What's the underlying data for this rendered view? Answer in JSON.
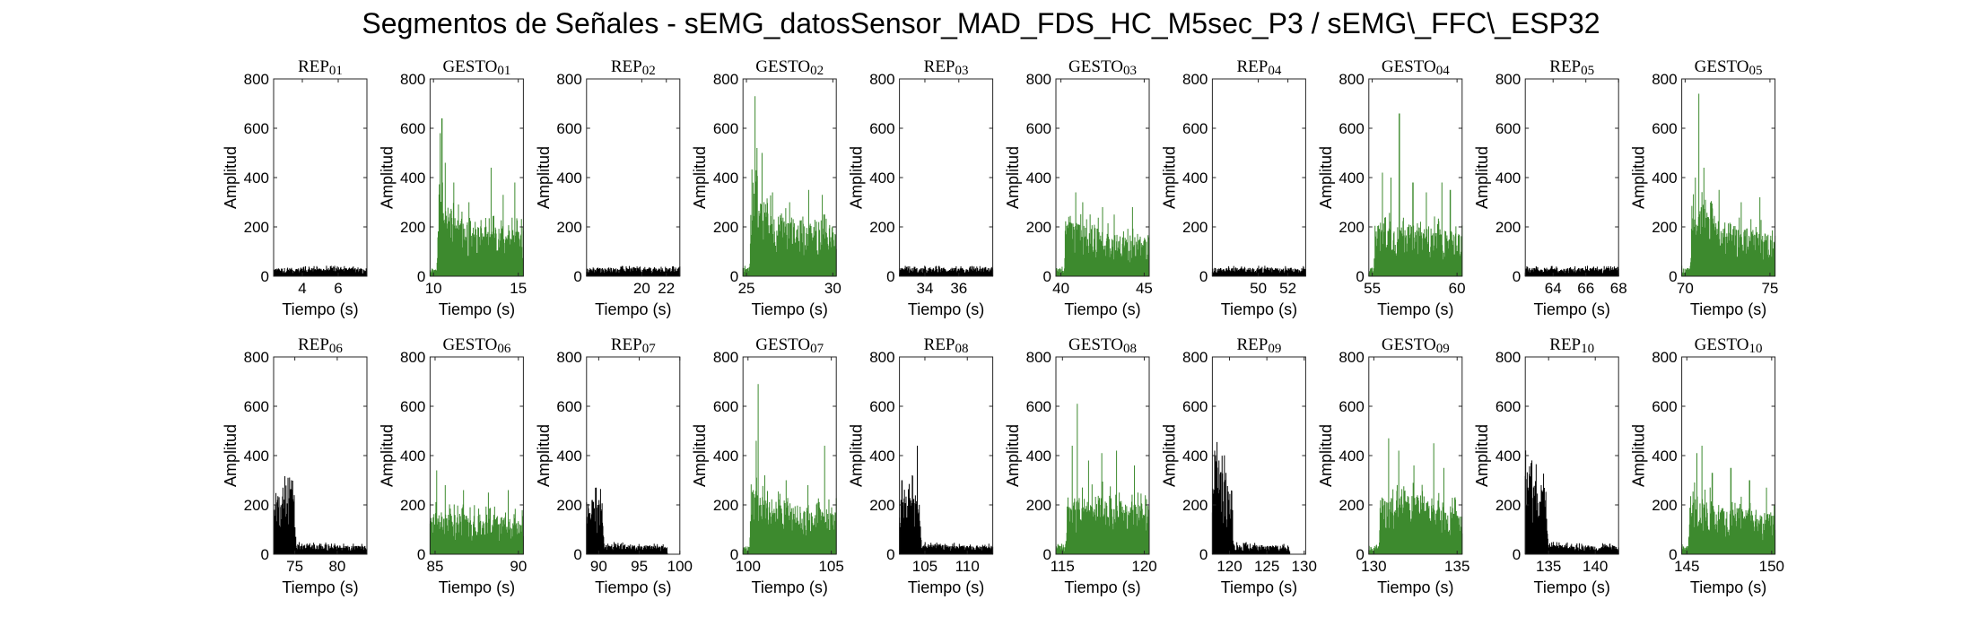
{
  "title": "Segmentos de Señales - sEMG_datosSensor_MAD_FDS_HC_M5sec_P3 / sEMG\\_FFC\\_ESP32",
  "colors": {
    "rep": "#000000",
    "gesto": "#3d8a2e",
    "axis": "#262626"
  },
  "chart_data": [
    {
      "type": "area",
      "title": "REP_01",
      "kind": "rep",
      "xlabel": "Tiempo (s)",
      "ylabel": "Amplitud",
      "xlim": [
        2.4,
        7.6
      ],
      "ylim": [
        0,
        800
      ],
      "xticks": [
        4,
        6
      ],
      "yticks": [
        0,
        200,
        400,
        600,
        800
      ],
      "profile": {
        "base": [
          [
            2.4,
            25
          ],
          [
            7.6,
            25
          ]
        ],
        "peaks": []
      }
    },
    {
      "type": "area",
      "title": "GESTO_01",
      "kind": "gesto",
      "xlabel": "Tiempo (s)",
      "ylabel": "Amplitud",
      "xlim": [
        9.8,
        15.3
      ],
      "ylim": [
        0,
        800
      ],
      "xticks": [
        10,
        15
      ],
      "yticks": [
        0,
        200,
        400,
        600,
        800
      ],
      "profile": {
        "base": [
          [
            9.8,
            20
          ],
          [
            10.2,
            20
          ],
          [
            10.3,
            260
          ],
          [
            10.8,
            190
          ],
          [
            12,
            160
          ],
          [
            15.3,
            140
          ]
        ],
        "peaks": [
          [
            10.4,
            580
          ],
          [
            10.5,
            640
          ],
          [
            10.7,
            460
          ],
          [
            11.2,
            380
          ],
          [
            12.1,
            300
          ],
          [
            13.4,
            440
          ],
          [
            14.1,
            330
          ],
          [
            14.8,
            380
          ]
        ]
      }
    },
    {
      "type": "area",
      "title": "REP_02",
      "kind": "rep",
      "xlabel": "Tiempo (s)",
      "ylabel": "Amplitud",
      "xlim": [
        15.5,
        23.1
      ],
      "ylim": [
        0,
        800
      ],
      "xticks": [
        20,
        22
      ],
      "yticks": [
        0,
        200,
        400,
        600,
        800
      ],
      "profile": {
        "base": [
          [
            15.5,
            25
          ],
          [
            23.1,
            25
          ]
        ],
        "peaks": []
      }
    },
    {
      "type": "area",
      "title": "GESTO_02",
      "kind": "gesto",
      "xlabel": "Tiempo (s)",
      "ylabel": "Amplitud",
      "xlim": [
        24.8,
        30.2
      ],
      "ylim": [
        0,
        800
      ],
      "xticks": [
        25,
        30
      ],
      "yticks": [
        0,
        200,
        400,
        600,
        800
      ],
      "profile": {
        "base": [
          [
            24.8,
            25
          ],
          [
            25.2,
            25
          ],
          [
            25.3,
            300
          ],
          [
            26,
            200
          ],
          [
            28,
            170
          ],
          [
            30.2,
            150
          ]
        ],
        "peaks": [
          [
            25.5,
            730
          ],
          [
            25.6,
            520
          ],
          [
            25.9,
            500
          ],
          [
            26.5,
            340
          ],
          [
            27.5,
            300
          ],
          [
            28.6,
            350
          ],
          [
            29.4,
            330
          ]
        ]
      }
    },
    {
      "type": "area",
      "title": "REP_03",
      "kind": "rep",
      "xlabel": "Tiempo (s)",
      "ylabel": "Amplitud",
      "xlim": [
        32.5,
        38.0
      ],
      "ylim": [
        0,
        800
      ],
      "xticks": [
        34,
        36
      ],
      "yticks": [
        0,
        200,
        400,
        600,
        800
      ],
      "profile": {
        "base": [
          [
            32.5,
            25
          ],
          [
            38.0,
            25
          ]
        ],
        "peaks": []
      }
    },
    {
      "type": "area",
      "title": "GESTO_03",
      "kind": "gesto",
      "xlabel": "Tiempo (s)",
      "ylabel": "Amplitud",
      "xlim": [
        39.7,
        45.3
      ],
      "ylim": [
        0,
        800
      ],
      "xticks": [
        40,
        45
      ],
      "yticks": [
        0,
        200,
        400,
        600,
        800
      ],
      "profile": {
        "base": [
          [
            39.7,
            25
          ],
          [
            40.2,
            25
          ],
          [
            40.3,
            170
          ],
          [
            43,
            130
          ],
          [
            45.3,
            110
          ]
        ],
        "peaks": [
          [
            40.9,
            340
          ],
          [
            41.3,
            300
          ],
          [
            42.5,
            280
          ],
          [
            43.2,
            250
          ],
          [
            44.3,
            280
          ]
        ]
      }
    },
    {
      "type": "area",
      "title": "REP_04",
      "kind": "rep",
      "xlabel": "Tiempo (s)",
      "ylabel": "Amplitud",
      "xlim": [
        46.9,
        53.2
      ],
      "ylim": [
        0,
        800
      ],
      "xticks": [
        50,
        52
      ],
      "yticks": [
        0,
        200,
        400,
        600,
        800
      ],
      "profile": {
        "base": [
          [
            46.9,
            25
          ],
          [
            53.2,
            25
          ]
        ],
        "peaks": []
      }
    },
    {
      "type": "area",
      "title": "GESTO_04",
      "kind": "gesto",
      "xlabel": "Tiempo (s)",
      "ylabel": "Amplitud",
      "xlim": [
        54.8,
        60.3
      ],
      "ylim": [
        0,
        800
      ],
      "xticks": [
        55,
        60
      ],
      "yticks": [
        0,
        200,
        400,
        600,
        800
      ],
      "profile": {
        "base": [
          [
            54.8,
            25
          ],
          [
            55.1,
            25
          ],
          [
            55.2,
            170
          ],
          [
            58,
            150
          ],
          [
            60.3,
            130
          ]
        ],
        "peaks": [
          [
            55.6,
            420
          ],
          [
            56.1,
            400
          ],
          [
            56.6,
            660
          ],
          [
            57.4,
            380
          ],
          [
            58.2,
            340
          ],
          [
            59.1,
            380
          ],
          [
            59.6,
            350
          ]
        ]
      }
    },
    {
      "type": "area",
      "title": "REP_05",
      "kind": "rep",
      "xlabel": "Tiempo (s)",
      "ylabel": "Amplitud",
      "xlim": [
        62.3,
        68.0
      ],
      "ylim": [
        0,
        800
      ],
      "xticks": [
        64,
        66,
        68
      ],
      "yticks": [
        0,
        200,
        400,
        600,
        800
      ],
      "profile": {
        "base": [
          [
            62.3,
            25
          ],
          [
            68.0,
            25
          ]
        ],
        "peaks": []
      }
    },
    {
      "type": "area",
      "title": "GESTO_05",
      "kind": "gesto",
      "xlabel": "Tiempo (s)",
      "ylabel": "Amplitud",
      "xlim": [
        69.8,
        75.3
      ],
      "ylim": [
        0,
        800
      ],
      "xticks": [
        70,
        75
      ],
      "yticks": [
        0,
        200,
        400,
        600,
        800
      ],
      "profile": {
        "base": [
          [
            69.8,
            25
          ],
          [
            70.3,
            25
          ],
          [
            70.4,
            260
          ],
          [
            71.5,
            180
          ],
          [
            73,
            150
          ],
          [
            75.3,
            130
          ]
        ],
        "peaks": [
          [
            70.6,
            400
          ],
          [
            70.8,
            740
          ],
          [
            71.1,
            440
          ],
          [
            72,
            350
          ],
          [
            73.3,
            300
          ],
          [
            74.4,
            320
          ]
        ]
      }
    },
    {
      "type": "area",
      "title": "REP_06",
      "kind": "rep",
      "xlabel": "Tiempo (s)",
      "ylabel": "Amplitud",
      "xlim": [
        72.5,
        83.5
      ],
      "ylim": [
        0,
        800
      ],
      "xticks": [
        75,
        80
      ],
      "yticks": [
        0,
        200,
        400,
        600,
        800
      ],
      "profile": {
        "base": [
          [
            72.5,
            170
          ],
          [
            74.8,
            200
          ],
          [
            75.2,
            30
          ],
          [
            83.5,
            25
          ]
        ],
        "peaks": [
          [
            73.6,
            270
          ],
          [
            74.2,
            310
          ],
          [
            74.6,
            300
          ]
        ]
      }
    },
    {
      "type": "area",
      "title": "GESTO_06",
      "kind": "gesto",
      "xlabel": "Tiempo (s)",
      "ylabel": "Amplitud",
      "xlim": [
        84.7,
        90.3
      ],
      "ylim": [
        0,
        800
      ],
      "xticks": [
        85,
        90
      ],
      "yticks": [
        0,
        200,
        400,
        600,
        800
      ],
      "profile": {
        "base": [
          [
            84.7,
            130
          ],
          [
            87,
            120
          ],
          [
            90.3,
            110
          ]
        ],
        "peaks": [
          [
            85.1,
            340
          ],
          [
            85.6,
            280
          ],
          [
            86.7,
            260
          ],
          [
            88.2,
            250
          ],
          [
            89.4,
            260
          ]
        ]
      }
    },
    {
      "type": "area",
      "title": "REP_07",
      "kind": "rep",
      "xlabel": "Tiempo (s)",
      "ylabel": "Amplitud",
      "xlim": [
        88.5,
        100.0
      ],
      "ylim": [
        0,
        800
      ],
      "xticks": [
        90,
        95,
        100
      ],
      "yticks": [
        0,
        200,
        400,
        600,
        800
      ],
      "profile": {
        "base": [
          [
            88.5,
            160
          ],
          [
            90.4,
            170
          ],
          [
            90.7,
            30
          ],
          [
            98.4,
            25
          ],
          [
            98.5,
            0
          ],
          [
            100,
            0
          ]
        ],
        "peaks": [
          [
            89.2,
            220
          ],
          [
            89.9,
            200
          ]
        ]
      }
    },
    {
      "type": "area",
      "title": "GESTO_07",
      "kind": "gesto",
      "xlabel": "Tiempo (s)",
      "ylabel": "Amplitud",
      "xlim": [
        99.7,
        105.3
      ],
      "ylim": [
        0,
        800
      ],
      "xticks": [
        100,
        105
      ],
      "yticks": [
        0,
        200,
        400,
        600,
        800
      ],
      "profile": {
        "base": [
          [
            99.7,
            25
          ],
          [
            100.1,
            25
          ],
          [
            100.2,
            210
          ],
          [
            102,
            150
          ],
          [
            105.3,
            140
          ]
        ],
        "peaks": [
          [
            100.5,
            460
          ],
          [
            100.6,
            690
          ],
          [
            101,
            320
          ],
          [
            102.3,
            300
          ],
          [
            103.6,
            280
          ],
          [
            104.6,
            440
          ]
        ]
      }
    },
    {
      "type": "area",
      "title": "REP_08",
      "kind": "rep",
      "xlabel": "Tiempo (s)",
      "ylabel": "Amplitud",
      "xlim": [
        102.0,
        113.0
      ],
      "ylim": [
        0,
        800
      ],
      "xticks": [
        105,
        110
      ],
      "yticks": [
        0,
        200,
        400,
        600,
        800
      ],
      "profile": {
        "base": [
          [
            102,
            170
          ],
          [
            104.3,
            200
          ],
          [
            104.6,
            30
          ],
          [
            113,
            25
          ]
        ],
        "peaks": [
          [
            102.3,
            300
          ],
          [
            103.5,
            320
          ],
          [
            104.1,
            440
          ]
        ]
      }
    },
    {
      "type": "area",
      "title": "GESTO_08",
      "kind": "gesto",
      "xlabel": "Tiempo (s)",
      "ylabel": "Amplitud",
      "xlim": [
        114.6,
        120.3
      ],
      "ylim": [
        0,
        800
      ],
      "xticks": [
        115,
        120
      ],
      "yticks": [
        0,
        200,
        400,
        600,
        800
      ],
      "profile": {
        "base": [
          [
            114.6,
            25
          ],
          [
            115.2,
            25
          ],
          [
            115.3,
            150
          ],
          [
            117,
            180
          ],
          [
            120.3,
            140
          ]
        ],
        "peaks": [
          [
            115.6,
            440
          ],
          [
            115.9,
            610
          ],
          [
            116.6,
            380
          ],
          [
            117.4,
            410
          ],
          [
            118.3,
            420
          ],
          [
            119.4,
            360
          ]
        ]
      }
    },
    {
      "type": "area",
      "title": "REP_09",
      "kind": "rep",
      "xlabel": "Tiempo (s)",
      "ylabel": "Amplitud",
      "xlim": [
        117.7,
        130.2
      ],
      "ylim": [
        0,
        800
      ],
      "xticks": [
        120,
        125,
        130
      ],
      "yticks": [
        0,
        200,
        400,
        600,
        800
      ],
      "profile": {
        "base": [
          [
            117.7,
            300
          ],
          [
            119,
            250
          ],
          [
            120.3,
            200
          ],
          [
            120.6,
            30
          ],
          [
            128,
            25
          ],
          [
            128.1,
            0
          ],
          [
            130.2,
            0
          ]
        ],
        "peaks": [
          [
            118,
            420
          ],
          [
            118.6,
            380
          ],
          [
            119.5,
            330
          ]
        ]
      }
    },
    {
      "type": "area",
      "title": "GESTO_09",
      "kind": "gesto",
      "xlabel": "Tiempo (s)",
      "ylabel": "Amplitud",
      "xlim": [
        129.7,
        135.3
      ],
      "ylim": [
        0,
        800
      ],
      "xticks": [
        130,
        135
      ],
      "yticks": [
        0,
        200,
        400,
        600,
        800
      ],
      "profile": {
        "base": [
          [
            129.7,
            25
          ],
          [
            130.3,
            25
          ],
          [
            130.4,
            170
          ],
          [
            133,
            180
          ],
          [
            135.3,
            130
          ]
        ],
        "peaks": [
          [
            130.9,
            470
          ],
          [
            131.5,
            420
          ],
          [
            132.4,
            360
          ],
          [
            133.6,
            450
          ],
          [
            134.2,
            350
          ]
        ]
      }
    },
    {
      "type": "area",
      "title": "REP_10",
      "kind": "rep",
      "xlabel": "Tiempo (s)",
      "ylabel": "Amplitud",
      "xlim": [
        132.5,
        142.5
      ],
      "ylim": [
        0,
        800
      ],
      "xticks": [
        135,
        140
      ],
      "yticks": [
        0,
        200,
        400,
        600,
        800
      ],
      "profile": {
        "base": [
          [
            132.5,
            250
          ],
          [
            134.6,
            200
          ],
          [
            135,
            30
          ],
          [
            142.5,
            25
          ]
        ],
        "peaks": [
          [
            132.9,
            310
          ],
          [
            133.6,
            290
          ],
          [
            134.2,
            280
          ]
        ]
      }
    },
    {
      "type": "area",
      "title": "GESTO_10",
      "kind": "gesto",
      "xlabel": "Tiempo (s)",
      "ylabel": "Amplitud",
      "xlim": [
        144.7,
        150.2
      ],
      "ylim": [
        0,
        800
      ],
      "xticks": [
        145,
        150
      ],
      "yticks": [
        0,
        200,
        400,
        600,
        800
      ],
      "profile": {
        "base": [
          [
            144.7,
            25
          ],
          [
            145.1,
            25
          ],
          [
            145.2,
            180
          ],
          [
            147,
            150
          ],
          [
            150.2,
            120
          ]
        ],
        "peaks": [
          [
            145.6,
            410
          ],
          [
            145.9,
            440
          ],
          [
            146.5,
            330
          ],
          [
            147.6,
            350
          ],
          [
            148.7,
            300
          ],
          [
            149.7,
            270
          ]
        ]
      }
    }
  ]
}
